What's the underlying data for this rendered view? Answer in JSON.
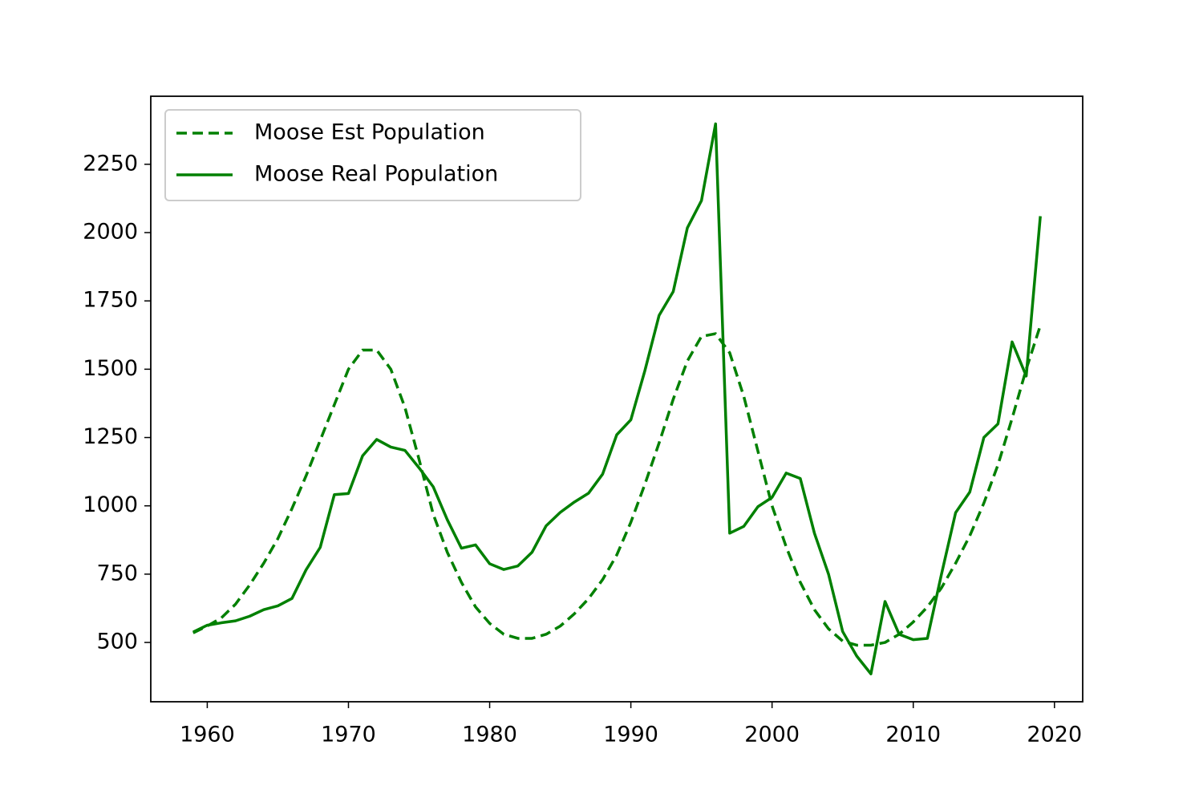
{
  "chart_data": {
    "type": "line",
    "x": [
      1959,
      1960,
      1961,
      1962,
      1963,
      1964,
      1965,
      1966,
      1967,
      1968,
      1969,
      1970,
      1971,
      1972,
      1973,
      1974,
      1975,
      1976,
      1977,
      1978,
      1979,
      1980,
      1981,
      1982,
      1983,
      1984,
      1985,
      1986,
      1987,
      1988,
      1989,
      1990,
      1991,
      1992,
      1993,
      1994,
      1995,
      1996,
      1997,
      1998,
      1999,
      2000,
      2001,
      2002,
      2003,
      2004,
      2005,
      2006,
      2007,
      2008,
      2009,
      2010,
      2011,
      2012,
      2013,
      2014,
      2015,
      2016,
      2017,
      2018,
      2019
    ],
    "series": [
      {
        "name": "Moose Est Population",
        "color": "#008000",
        "linestyle": "dashed",
        "values": [
          535,
          560,
          590,
          640,
          710,
          790,
          880,
          990,
          1110,
          1240,
          1370,
          1500,
          1570,
          1570,
          1500,
          1360,
          1170,
          970,
          830,
          720,
          630,
          570,
          530,
          515,
          515,
          530,
          560,
          605,
          660,
          730,
          820,
          940,
          1080,
          1230,
          1390,
          1530,
          1620,
          1630,
          1560,
          1400,
          1200,
          1000,
          850,
          720,
          620,
          550,
          505,
          490,
          490,
          500,
          530,
          575,
          630,
          700,
          790,
          890,
          1010,
          1150,
          1320,
          1500,
          1660
        ]
      },
      {
        "name": "Moose Real Population",
        "color": "#008000",
        "linestyle": "solid",
        "values": [
          538,
          563,
          572,
          579,
          596,
          620,
          634,
          661,
          766,
          848,
          1041,
          1045,
          1183,
          1243,
          1215,
          1203,
          1139,
          1070,
          949,
          845,
          857,
          788,
          767,
          780,
          830,
          927,
          976,
          1014,
          1046,
          1116,
          1260,
          1315,
          1496,
          1697,
          1784,
          2017,
          2117,
          2398,
          900,
          925,
          997,
          1031,
          1120,
          1100,
          900,
          750,
          540,
          450,
          385,
          650,
          530,
          510,
          515,
          750,
          975,
          1050,
          1250,
          1300,
          1600,
          1475,
          2060
        ]
      }
    ],
    "xlim": [
      1956,
      2022
    ],
    "xticks": [
      1960,
      1970,
      1980,
      1990,
      2000,
      2010,
      2020
    ],
    "ylim": [
      283,
      2499
    ],
    "yticks": [
      500,
      750,
      1000,
      1250,
      1500,
      1750,
      2000,
      2250
    ],
    "legend": "upper left"
  }
}
